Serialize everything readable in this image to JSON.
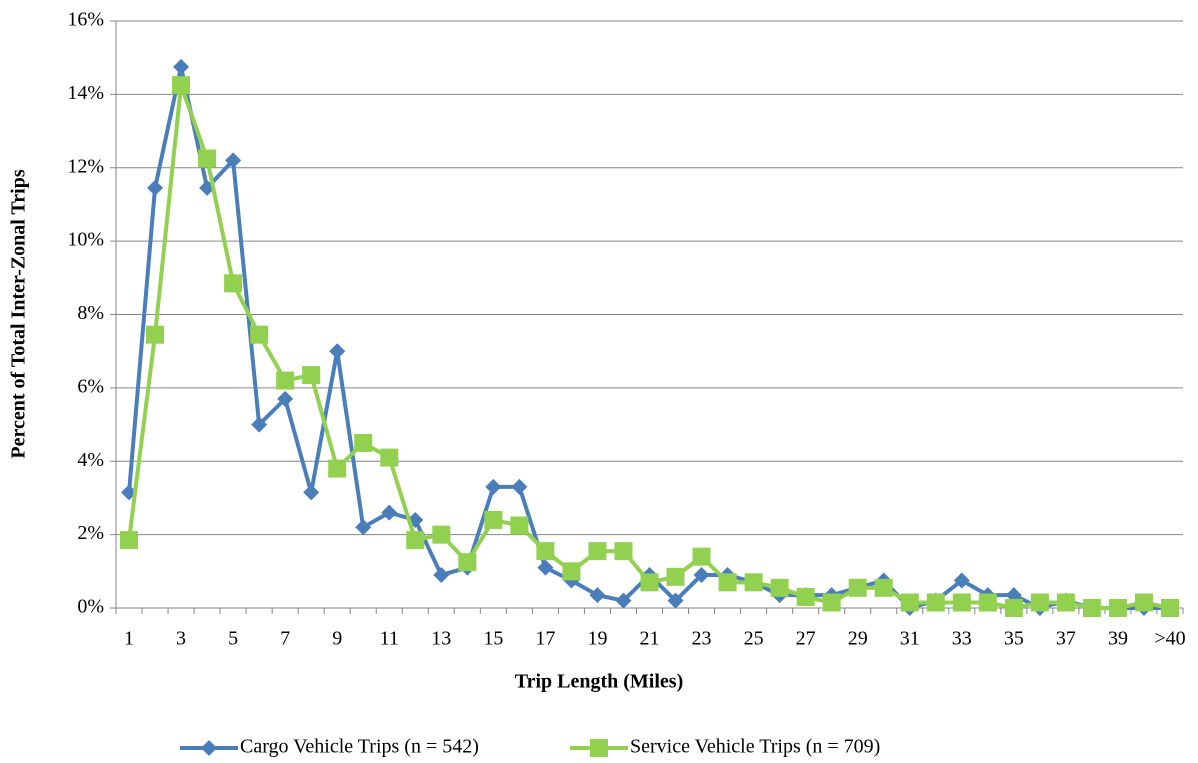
{
  "chart_data": {
    "type": "line",
    "x_label": "Trip Length (Miles)",
    "y_label": "Percent of Total Inter-Zonal Trips",
    "categories": [
      "1",
      null,
      "3",
      null,
      "5",
      null,
      "7",
      null,
      "9",
      null,
      "11",
      null,
      "13",
      null,
      "15",
      null,
      "17",
      null,
      "19",
      null,
      "21",
      null,
      "23",
      null,
      "25",
      null,
      "27",
      null,
      "29",
      null,
      "31",
      null,
      "33",
      null,
      "35",
      null,
      "37",
      null,
      "39",
      null,
      ">40"
    ],
    "series": [
      {
        "name": "Cargo Vehicle Trips (n = 542)",
        "color": "#4a7ebb",
        "marker": "diamond",
        "values": [
          3.15,
          11.45,
          14.75,
          11.45,
          12.2,
          5.0,
          5.7,
          3.15,
          7.0,
          2.2,
          2.6,
          2.4,
          0.9,
          1.1,
          3.3,
          3.3,
          1.1,
          0.75,
          0.35,
          0.2,
          0.9,
          0.2,
          0.9,
          0.9,
          0.7,
          0.35,
          0.35,
          0.35,
          0.55,
          0.75,
          0.0,
          0.2,
          0.75,
          0.35,
          0.35,
          0.0,
          0.2,
          0.0,
          0.0,
          0.0,
          0.0
        ]
      },
      {
        "name": "Service Vehicle Trips (n = 709)",
        "color": "#92d050",
        "marker": "square",
        "values": [
          1.85,
          7.45,
          14.25,
          12.25,
          8.85,
          7.45,
          6.2,
          6.35,
          3.8,
          4.5,
          4.1,
          1.85,
          2.0,
          1.25,
          2.4,
          2.25,
          1.55,
          1.0,
          1.55,
          1.55,
          0.7,
          0.85,
          1.4,
          0.7,
          0.7,
          0.55,
          0.3,
          0.15,
          0.55,
          0.55,
          0.15,
          0.15,
          0.15,
          0.15,
          0.0,
          0.15,
          0.15,
          0.0,
          0.0,
          0.15,
          0.0
        ]
      }
    ],
    "ylim": [
      0,
      16
    ],
    "yticks": [
      {
        "value": 0,
        "label": "0%"
      },
      {
        "value": 2,
        "label": "2%"
      },
      {
        "value": 4,
        "label": "4%"
      },
      {
        "value": 6,
        "label": "6%"
      },
      {
        "value": 8,
        "label": "8%"
      },
      {
        "value": 10,
        "label": "10%"
      },
      {
        "value": 12,
        "label": "12%"
      },
      {
        "value": 14,
        "label": "14%"
      },
      {
        "value": 16,
        "label": "16%"
      }
    ],
    "grid": true,
    "legend": "bottom"
  }
}
